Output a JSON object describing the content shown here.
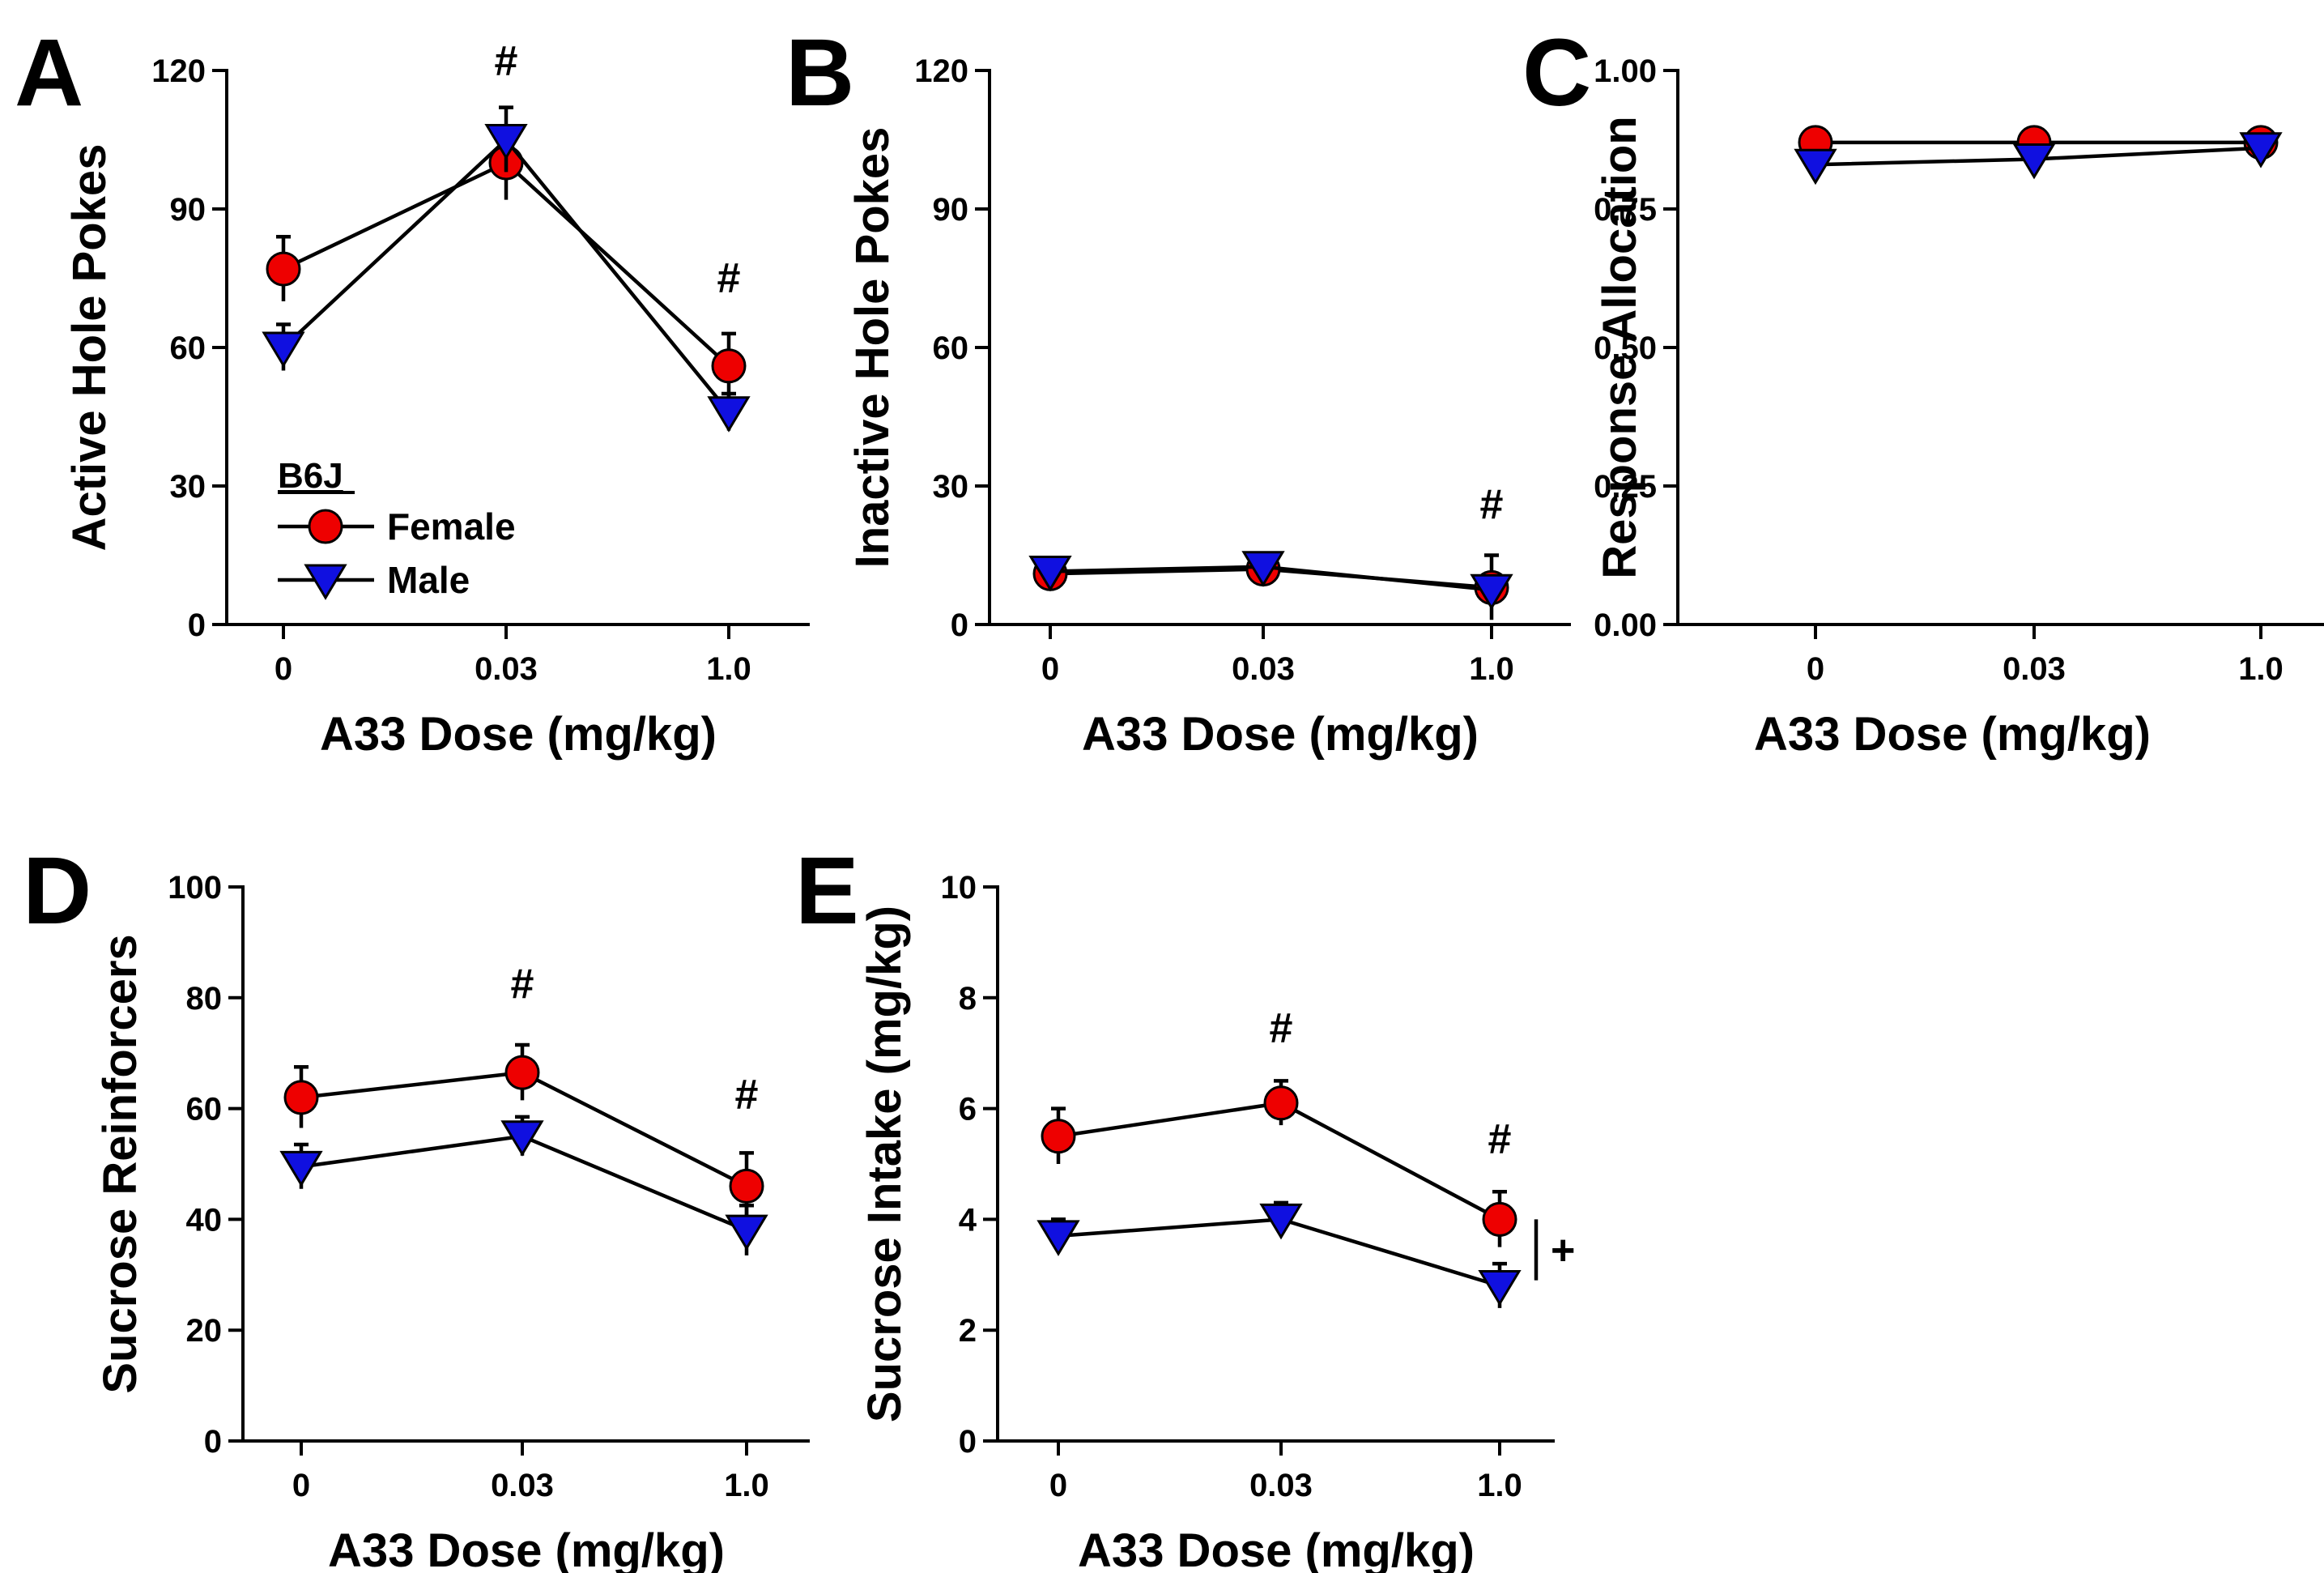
{
  "figure": {
    "colors": {
      "Female": "#ee0000",
      "Male": "#1010e0"
    },
    "legend": {
      "title": "B6J",
      "entries": [
        {
          "label": "Female",
          "marker": "circle"
        },
        {
          "label": "Male",
          "marker": "triangle-down"
        }
      ]
    }
  },
  "chart_data": [
    {
      "panel": "A",
      "type": "line",
      "categories": [
        "0",
        "0.03",
        "1.0"
      ],
      "xlabel": "A33 Dose (mg/kg)",
      "ylabel": "Active Hole Pokes",
      "ylim": [
        0,
        120
      ],
      "yticks": [
        0,
        30,
        60,
        90,
        120
      ],
      "ytick_labels": [
        "0",
        "30",
        "60",
        "90",
        "120"
      ],
      "series": [
        {
          "name": "Female",
          "marker": "circle",
          "values": [
            77,
            100,
            56
          ],
          "errors": [
            7,
            8,
            7
          ]
        },
        {
          "name": "Male",
          "marker": "triangle-down",
          "values": [
            60,
            105,
            46
          ],
          "errors": [
            5,
            7,
            4
          ]
        }
      ],
      "annotations": [
        {
          "text": "#",
          "category": "0.03",
          "value": 119
        },
        {
          "text": "#",
          "category": "1.0",
          "value": 72
        }
      ],
      "show_legend": true
    },
    {
      "panel": "B",
      "type": "line",
      "categories": [
        "0",
        "0.03",
        "1.0"
      ],
      "xlabel": "A33 Dose (mg/kg)",
      "ylabel": "Inactive Hole Pokes",
      "ylim": [
        0,
        120
      ],
      "yticks": [
        0,
        30,
        60,
        90,
        120
      ],
      "ytick_labels": [
        "0",
        "30",
        "60",
        "90",
        "120"
      ],
      "series": [
        {
          "name": "Female",
          "marker": "circle",
          "values": [
            11,
            12,
            8
          ],
          "errors": [
            1.5,
            1.5,
            7
          ]
        },
        {
          "name": "Male",
          "marker": "triangle-down",
          "values": [
            11.5,
            12.5,
            7.5
          ],
          "errors": [
            1,
            1,
            2
          ]
        }
      ],
      "annotations": [
        {
          "text": "#",
          "category": "1.0",
          "value": 23
        }
      ],
      "show_legend": false
    },
    {
      "panel": "C",
      "type": "line",
      "categories": [
        "0",
        "0.03",
        "1.0"
      ],
      "xlabel": "A33 Dose (mg/kg)",
      "ylabel": "Response Allocation",
      "ylim": [
        0,
        1
      ],
      "yticks": [
        0,
        0.25,
        0.5,
        0.75,
        1
      ],
      "ytick_labels": [
        "0.00",
        "0.25",
        "0.50",
        "0.75",
        "1.00"
      ],
      "series": [
        {
          "name": "Female",
          "marker": "circle",
          "values": [
            0.87,
            0.87,
            0.87
          ],
          "errors": [
            0.02,
            0.01,
            0.02
          ]
        },
        {
          "name": "Male",
          "marker": "triangle-down",
          "values": [
            0.83,
            0.84,
            0.86
          ],
          "errors": [
            0.02,
            0.02,
            0.02
          ]
        }
      ],
      "annotations": [],
      "show_legend": false
    },
    {
      "panel": "D",
      "type": "line",
      "categories": [
        "0",
        "0.03",
        "1.0"
      ],
      "xlabel": "A33 Dose (mg/kg)",
      "ylabel": "Sucrose Reinforcers",
      "ylim": [
        0,
        100
      ],
      "yticks": [
        0,
        20,
        40,
        60,
        80,
        100
      ],
      "ytick_labels": [
        "0",
        "20",
        "40",
        "60",
        "80",
        "100"
      ],
      "series": [
        {
          "name": "Female",
          "marker": "circle",
          "values": [
            62,
            66.5,
            46
          ],
          "errors": [
            5.5,
            5,
            6
          ]
        },
        {
          "name": "Male",
          "marker": "triangle-down",
          "values": [
            49.5,
            55,
            38
          ],
          "errors": [
            4,
            3.5,
            4.5
          ]
        }
      ],
      "annotations": [
        {
          "text": "#",
          "category": "0.03",
          "value": 80
        },
        {
          "text": "#",
          "category": "1.0",
          "value": 60
        }
      ],
      "show_legend": false
    },
    {
      "panel": "E",
      "type": "line",
      "categories": [
        "0",
        "0.03",
        "1.0"
      ],
      "xlabel": "A33 Dose (mg/kg)",
      "ylabel": "Sucrose Intake (mg/kg)",
      "ylim": [
        0,
        10
      ],
      "yticks": [
        0,
        2,
        4,
        6,
        8,
        10
      ],
      "ytick_labels": [
        "0",
        "2",
        "4",
        "6",
        "8",
        "10"
      ],
      "series": [
        {
          "name": "Female",
          "marker": "circle",
          "values": [
            5.5,
            6.1,
            4.0
          ],
          "errors": [
            0.5,
            0.4,
            0.5
          ]
        },
        {
          "name": "Male",
          "marker": "triangle-down",
          "values": [
            3.7,
            4.0,
            2.8
          ],
          "errors": [
            0.3,
            0.3,
            0.4
          ]
        }
      ],
      "annotations": [
        {
          "text": "#",
          "category": "0.03",
          "value": 7.2
        },
        {
          "text": "#",
          "category": "1.0",
          "value": 5.2
        }
      ],
      "significance_bracket": {
        "text": "+",
        "from": 2.9,
        "to": 4.0
      },
      "show_legend": false
    }
  ]
}
